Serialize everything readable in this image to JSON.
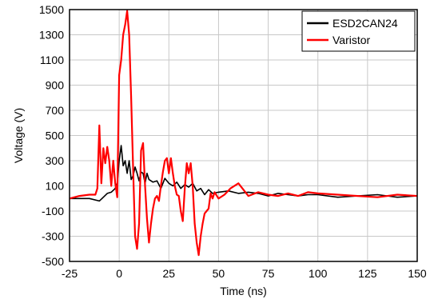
{
  "chart_data": {
    "type": "line",
    "title": "",
    "xlabel": "Time (ns)",
    "ylabel": "Voltage (V)",
    "xlim": [
      -25,
      150
    ],
    "ylim": [
      -500,
      1500
    ],
    "xticks": [
      -25,
      0,
      25,
      50,
      75,
      100,
      125,
      150
    ],
    "yticks": [
      -500,
      -300,
      -100,
      100,
      300,
      500,
      700,
      900,
      1100,
      1300,
      1500
    ],
    "grid": true,
    "legend": "top-right",
    "series": [
      {
        "name": "ESD2CAN24",
        "color": "#000000",
        "x": [
          -25,
          -20,
          -15,
          -10,
          -8,
          -6,
          -4,
          -2,
          -1,
          0,
          1,
          2,
          3,
          4,
          5,
          6,
          7,
          8,
          9,
          10,
          11,
          12,
          13,
          14,
          15,
          17,
          19,
          21,
          23,
          25,
          27,
          29,
          31,
          33,
          35,
          37,
          39,
          41,
          43,
          45,
          47,
          50,
          55,
          60,
          65,
          70,
          75,
          80,
          85,
          90,
          95,
          100,
          110,
          120,
          130,
          140,
          150
        ],
        "y": [
          0,
          0,
          0,
          -20,
          10,
          40,
          50,
          80,
          120,
          300,
          420,
          260,
          300,
          200,
          300,
          150,
          180,
          250,
          200,
          140,
          210,
          200,
          120,
          200,
          150,
          130,
          140,
          80,
          160,
          120,
          100,
          130,
          80,
          110,
          90,
          120,
          60,
          80,
          30,
          70,
          40,
          50,
          60,
          40,
          50,
          40,
          20,
          40,
          30,
          20,
          30,
          30,
          10,
          20,
          30,
          10,
          20
        ]
      },
      {
        "name": "Varistor",
        "color": "#ff0000",
        "x": [
          -25,
          -20,
          -15,
          -12,
          -11,
          -10,
          -9,
          -8,
          -7,
          -6,
          -5,
          -4,
          -3,
          -2,
          -1,
          0,
          1,
          2,
          3,
          4,
          5,
          6,
          7,
          8,
          9,
          10,
          11,
          12,
          13,
          14,
          15,
          16,
          17,
          18,
          19,
          20,
          21,
          22,
          23,
          24,
          25,
          26,
          27,
          28,
          29,
          30,
          31,
          32,
          33,
          34,
          35,
          36,
          37,
          38,
          39,
          40,
          41,
          42,
          43,
          44,
          45,
          46,
          47,
          48,
          50,
          53,
          56,
          60,
          65,
          70,
          75,
          80,
          85,
          90,
          95,
          100,
          110,
          120,
          130,
          140,
          150
        ],
        "y": [
          0,
          20,
          30,
          30,
          80,
          580,
          120,
          400,
          280,
          410,
          300,
          100,
          300,
          120,
          10,
          980,
          1100,
          1300,
          1380,
          1490,
          1300,
          800,
          250,
          -300,
          -400,
          -200,
          380,
          440,
          100,
          -160,
          -350,
          -200,
          -80,
          0,
          20,
          -20,
          100,
          210,
          300,
          320,
          200,
          320,
          200,
          100,
          30,
          20,
          -100,
          -180,
          80,
          280,
          200,
          280,
          100,
          -200,
          -350,
          -450,
          -300,
          -200,
          -120,
          -100,
          -80,
          40,
          0,
          50,
          0,
          30,
          80,
          120,
          20,
          50,
          30,
          20,
          40,
          20,
          50,
          40,
          30,
          20,
          10,
          30,
          20
        ]
      }
    ]
  }
}
